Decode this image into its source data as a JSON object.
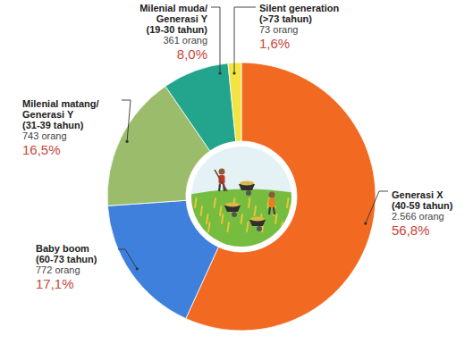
{
  "chart_data": {
    "type": "pie",
    "categories": [
      "Generasi X",
      "Baby boom",
      "Milenial matang/ Generasi Y",
      "Milenial muda/ Generasi Y",
      "Silent generation"
    ],
    "age_ranges": [
      "(40-59 tahun)",
      "(60-73 tahun)",
      "(31-39 tahun)",
      "(19-30 tahun)",
      "(>73 tahun)"
    ],
    "count_labels": [
      "2.566 orang",
      "772 orang",
      "743 orang",
      "361 orang",
      "73 orang"
    ],
    "values": [
      56.8,
      17.1,
      16.5,
      8.0,
      1.6
    ],
    "value_labels": [
      "56,8%",
      "17,1%",
      "16,5%",
      "8,0%",
      "1,6%"
    ],
    "colors": [
      "#f26a21",
      "#3f80dc",
      "#9bbd6b",
      "#22a58c",
      "#f3e443"
    ],
    "data_labels": true
  }
}
